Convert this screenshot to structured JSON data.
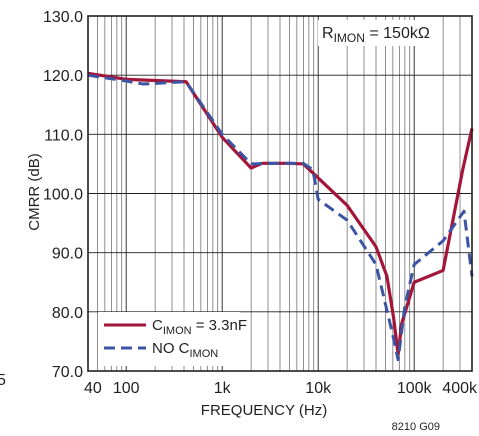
{
  "chart_data": {
    "type": "line",
    "title": "",
    "xlabel": "FREQUENCY (Hz)",
    "ylabel": "CMRR (dB)",
    "x_scale": "log",
    "xlim": [
      40,
      400000
    ],
    "ylim": [
      70,
      130
    ],
    "grid": true,
    "x_tick_values": [
      40,
      100,
      1000,
      10000,
      100000,
      400000
    ],
    "x_tick_labels": [
      "40",
      "100",
      "1k",
      "10k",
      "100k",
      "400k"
    ],
    "y_tick_values": [
      70,
      80,
      90,
      100,
      110,
      120,
      130
    ],
    "y_tick_labels": [
      "70.0",
      "80.0",
      "90.0",
      "100.0",
      "110.0",
      "120.0",
      "130.0"
    ],
    "annotation": {
      "main": "R",
      "sub": "IMON",
      "rest": " = 150kΩ"
    },
    "legend_position": "bottom-left",
    "figure_id": "8210 G09",
    "series": [
      {
        "legend_main": "C",
        "legend_sub": "IMON",
        "legend_rest": " = 3.3nF",
        "color": "#a3163a",
        "style": "solid",
        "points": [
          [
            40,
            120.3
          ],
          [
            100,
            119.3
          ],
          [
            200,
            119.1
          ],
          [
            420,
            118.9
          ],
          [
            1000,
            109.5
          ],
          [
            2000,
            104.3
          ],
          [
            2600,
            105.1
          ],
          [
            5000,
            105.1
          ],
          [
            7000,
            105.0
          ],
          [
            20000,
            98.0
          ],
          [
            40000,
            91.0
          ],
          [
            52000,
            86.0
          ],
          [
            61000,
            79.0
          ],
          [
            68000,
            72.8
          ],
          [
            74000,
            78.0
          ],
          [
            100000,
            85.0
          ],
          [
            200000,
            87.0
          ],
          [
            320000,
            104.0
          ],
          [
            400000,
            111.0
          ]
        ]
      },
      {
        "legend_main": "NO C",
        "legend_sub": "IMON",
        "legend_rest": "",
        "color": "#3b54a3",
        "style": "dashed",
        "points": [
          [
            40,
            120.0
          ],
          [
            100,
            119.0
          ],
          [
            150,
            118.5
          ],
          [
            420,
            118.9
          ],
          [
            1000,
            110.0
          ],
          [
            2000,
            105.0
          ],
          [
            3000,
            105.1
          ],
          [
            7000,
            105.1
          ],
          [
            8800,
            104.0
          ],
          [
            10000,
            99.0
          ],
          [
            20000,
            95.5
          ],
          [
            40000,
            88.0
          ],
          [
            60000,
            76.0
          ],
          [
            68000,
            71.9
          ],
          [
            80000,
            81.0
          ],
          [
            100000,
            88.0
          ],
          [
            200000,
            92.0
          ],
          [
            330000,
            97.0
          ],
          [
            400000,
            86.0
          ]
        ]
      }
    ],
    "left_edge_fragment": "5"
  }
}
